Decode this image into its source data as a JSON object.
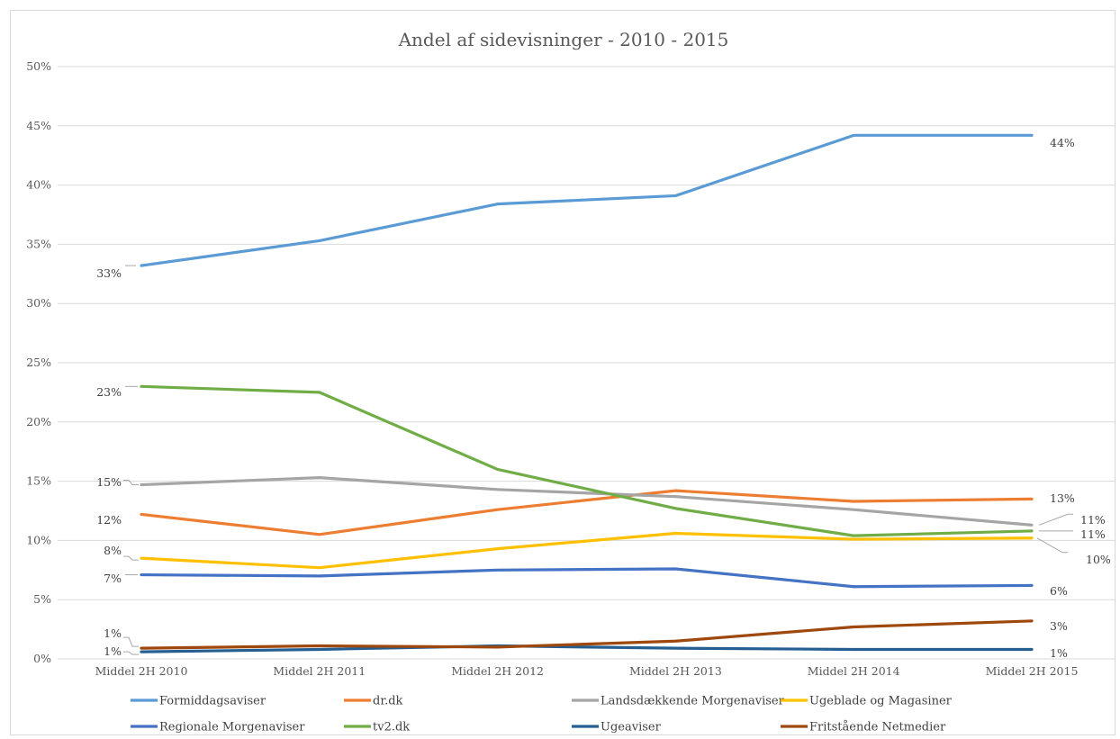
{
  "chart_data": {
    "type": "line",
    "title": "Andel af sidevisninger - 2010 - 2015",
    "xlabel": "",
    "ylabel": "",
    "categories": [
      "Middel 2H 2010",
      "Middel 2H 2011",
      "Middel 2H 2012",
      "Middel 2H 2013",
      "Middel 2H 2014",
      "Middel 2H 2015"
    ],
    "ylim": [
      0,
      50
    ],
    "yticks": [
      0,
      5,
      10,
      15,
      20,
      25,
      30,
      35,
      40,
      45,
      50
    ],
    "ytick_labels": [
      "0%",
      "5%",
      "10%",
      "15%",
      "20%",
      "25%",
      "30%",
      "35%",
      "40%",
      "45%",
      "50%"
    ],
    "grid": true,
    "legend_position": "bottom",
    "series": [
      {
        "name": "Formiddagsaviser",
        "color": "#5b9bd5",
        "values": [
          33.2,
          35.3,
          38.4,
          39.1,
          44.2,
          44.2
        ],
        "first_label": "33%",
        "last_label": "44%"
      },
      {
        "name": "dr.dk",
        "color": "#ed7d31",
        "values": [
          12.2,
          10.5,
          12.6,
          14.2,
          13.3,
          13.5
        ],
        "first_label": "12%",
        "last_label": "13%"
      },
      {
        "name": "Landsdækkende Morgenaviser",
        "color": "#a5a5a5",
        "values": [
          14.7,
          15.3,
          14.3,
          13.7,
          12.6,
          11.3
        ],
        "first_label": "15%",
        "last_label": "11%"
      },
      {
        "name": "Ugeblade og Magasiner",
        "color": "#ffc000",
        "values": [
          8.5,
          7.7,
          9.3,
          10.6,
          10.1,
          10.2
        ],
        "first_label": "8%",
        "last_label": "10%"
      },
      {
        "name": "Regionale Morgenaviser",
        "color": "#4472c4",
        "values": [
          7.1,
          7.0,
          7.5,
          7.6,
          6.1,
          6.2
        ],
        "first_label": "7%",
        "last_label": "6%"
      },
      {
        "name": "tv2.dk",
        "color": "#70ad47",
        "values": [
          23.0,
          22.5,
          16.0,
          12.7,
          10.4,
          10.8
        ],
        "first_label": "23%",
        "last_label": "11%"
      },
      {
        "name": "Ugeaviser",
        "color": "#255e91",
        "values": [
          0.6,
          0.8,
          1.1,
          0.9,
          0.8,
          0.8
        ],
        "first_label": "1%",
        "last_label": "1%"
      },
      {
        "name": "Fritstående Netmedier",
        "color": "#9e480e",
        "values": [
          0.9,
          1.1,
          1.0,
          1.5,
          2.7,
          3.2
        ],
        "first_label": "1%",
        "last_label": "3%"
      }
    ]
  }
}
